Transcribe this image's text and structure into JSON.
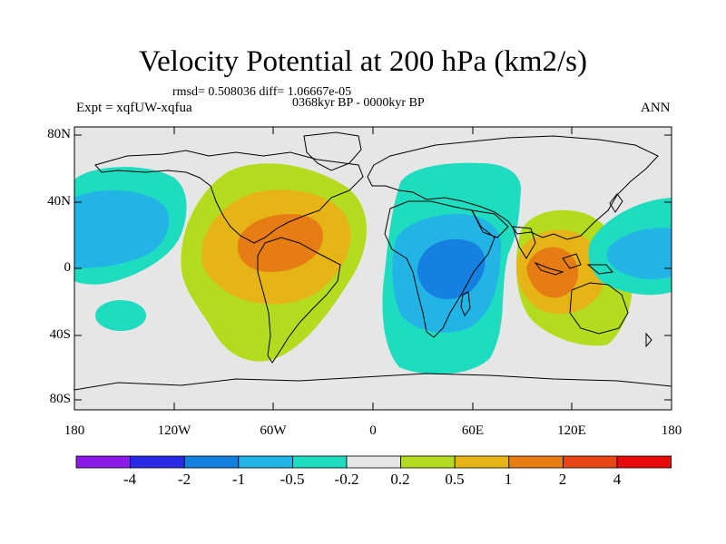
{
  "title": "Velocity Potential at 200 hPa (km2/s)",
  "stats": "rmsd= 0.508036 diff= 1.06667e-05",
  "period": "0368kyr BP - 0000kyr BP",
  "expt": "Expt = xqfUW-xqfua",
  "season": "ANN",
  "lat_labels": [
    "80N",
    "40N",
    "0",
    "40S",
    "80S"
  ],
  "lon_labels": [
    "180",
    "120W",
    "60W",
    "0",
    "60E",
    "120E",
    "180"
  ],
  "colorbar": {
    "labels": [
      "-4",
      "-2",
      "-1",
      "-0.5",
      "-0.2",
      "0.2",
      "0.5",
      "1",
      "2",
      "4"
    ],
    "colors": [
      "#8c1ae6",
      "#2a2ae6",
      "#1580e0",
      "#23b4e6",
      "#1edcc0",
      "#e6e6e6",
      "#b4dc1e",
      "#e6b414",
      "#e67d14",
      "#e64614",
      "#e60a0a"
    ]
  },
  "map_colors": {
    "neutral": "#e6e6e6",
    "pos1": "#b4dc1e",
    "pos2": "#e6b414",
    "pos3": "#e67d14",
    "neg1": "#1edcc0",
    "neg2": "#23b4e6",
    "neg3": "#1580e0"
  }
}
